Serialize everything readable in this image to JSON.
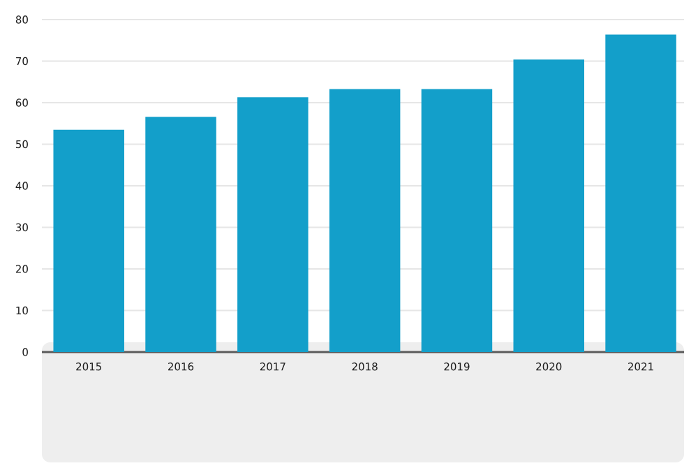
{
  "chart_data": {
    "type": "bar",
    "categories": [
      "2015",
      "2016",
      "2017",
      "2018",
      "2019",
      "2020",
      "2021"
    ],
    "values": [
      53.5,
      56.6,
      61.3,
      63.3,
      63.3,
      70.4,
      76.4
    ],
    "color": "#139fca",
    "ylim": [
      0,
      80
    ],
    "yticks": [
      0,
      10,
      20,
      30,
      40,
      50,
      60,
      70,
      80
    ],
    "grid": "y"
  }
}
